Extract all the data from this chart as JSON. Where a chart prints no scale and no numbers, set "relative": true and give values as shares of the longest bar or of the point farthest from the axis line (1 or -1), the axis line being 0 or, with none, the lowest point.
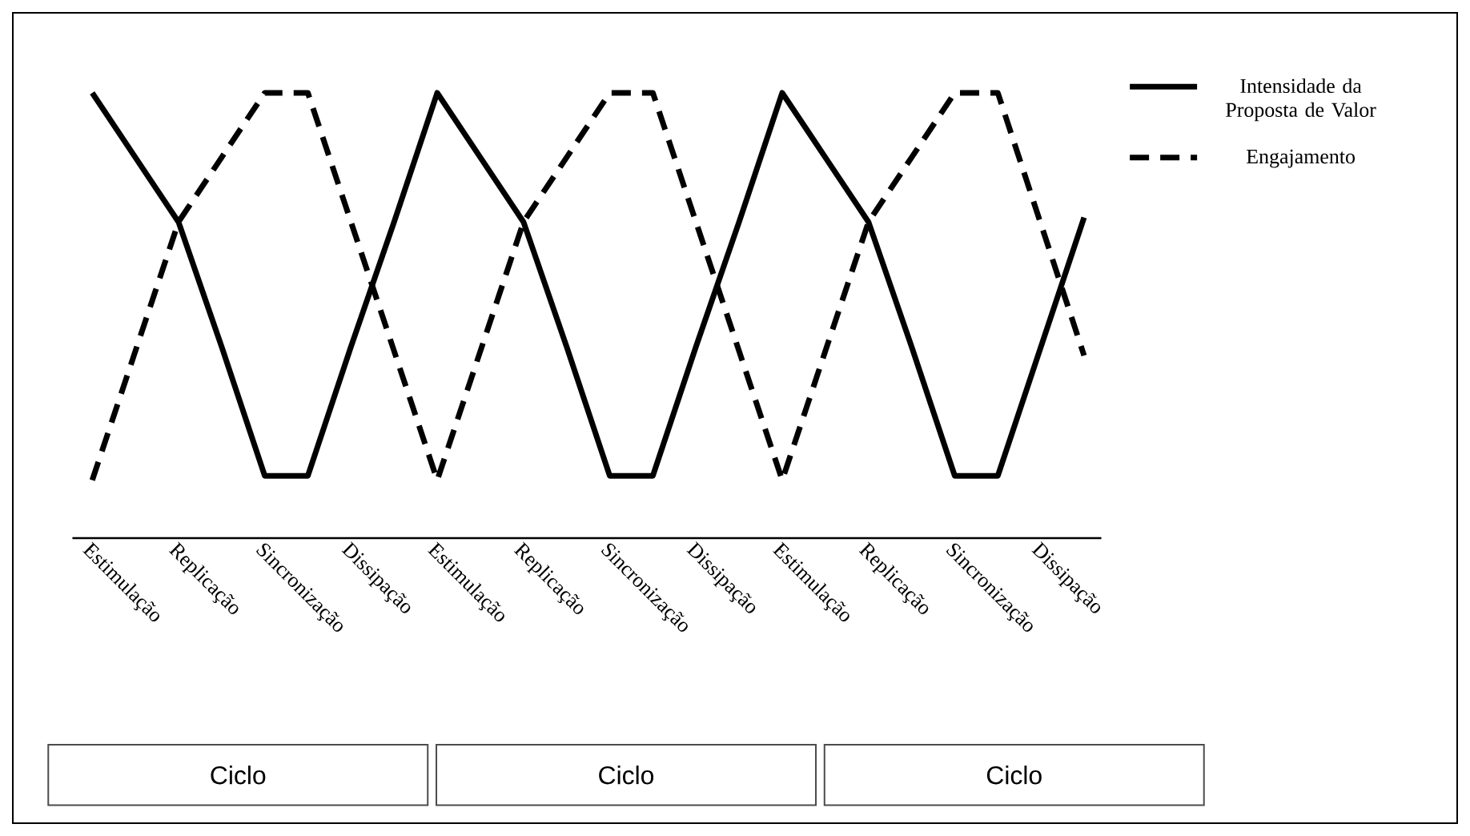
{
  "chart_data": {
    "type": "line",
    "relative": true,
    "legend": "right",
    "categories": [
      "Estimulação",
      null,
      "Replicação",
      null,
      "Sincronização",
      null,
      "Dissipação",
      null,
      "Estimulação",
      null,
      "Replicação",
      null,
      "Sincronização",
      null,
      "Dissipação",
      null,
      "Estimulação",
      null,
      "Replicação",
      null,
      "Sincronização",
      null,
      "Dissipação",
      null
    ],
    "series": [
      {
        "name": "Intensidade da Proposta de Valor",
        "color": "#000000",
        "line_style": "solid",
        "values": [
          1,
          0.855,
          0.71,
          0.43,
          0.14,
          0.14,
          0.43,
          0.71,
          1,
          0.855,
          0.71,
          0.43,
          0.14,
          0.14,
          0.43,
          0.71,
          1,
          0.855,
          0.71,
          0.43,
          0.14,
          0.14,
          0.43,
          0.72
        ]
      },
      {
        "name": "Engajamento",
        "color": "#000000",
        "line_style": "dashed",
        "values": [
          0.13,
          0.42,
          0.71,
          0.855,
          1,
          1,
          0.71,
          0.42,
          0.13,
          0.42,
          0.71,
          0.855,
          1,
          1,
          0.71,
          0.42,
          0.13,
          0.42,
          0.71,
          0.855,
          1,
          1,
          0.705,
          0.41
        ]
      }
    ],
    "annotations": [
      "Ciclo",
      "Ciclo",
      "Ciclo"
    ]
  }
}
